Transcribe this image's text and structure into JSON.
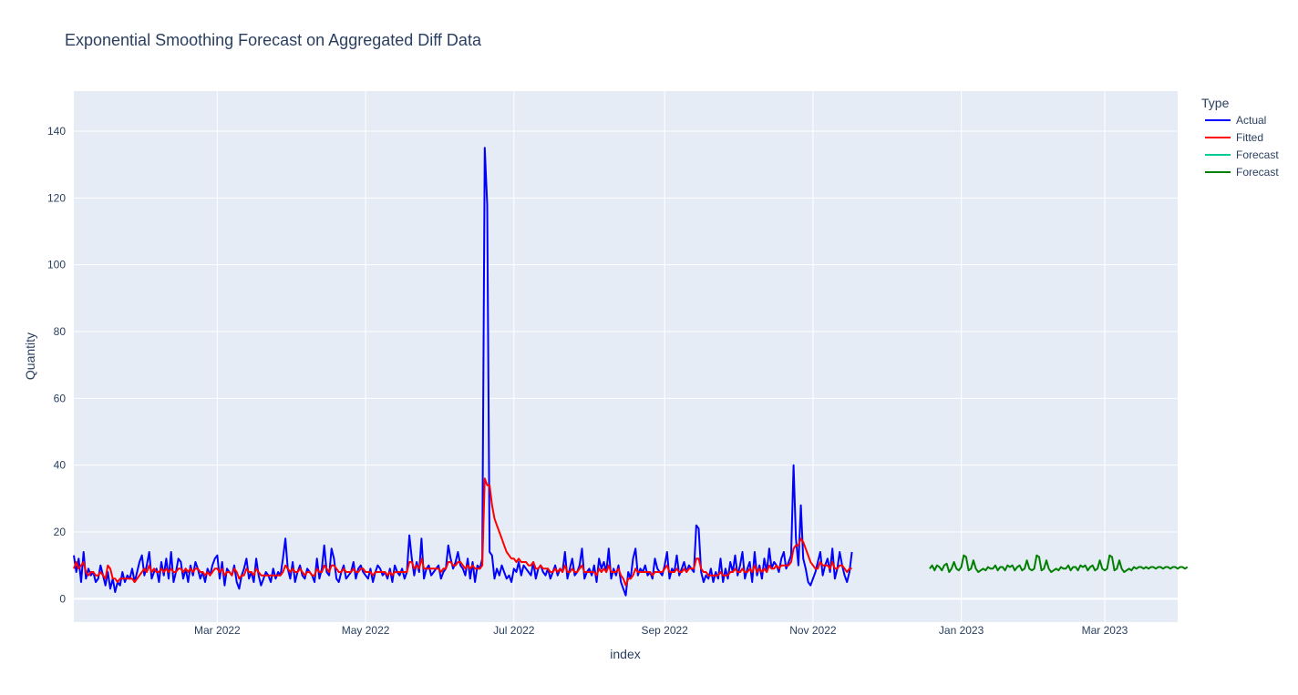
{
  "chart_data": {
    "type": "line",
    "title": "Exponential Smoothing Forecast on Aggregated Diff Data",
    "xlabel": "index",
    "ylabel": "Quantity",
    "legend_title": "Type",
    "legend_position": "top-right",
    "grid": true,
    "xlim": [
      "2022-01-01",
      "2023-03-31"
    ],
    "ylim": [
      -7,
      152
    ],
    "y_ticks": [
      0,
      20,
      40,
      60,
      80,
      100,
      120,
      140
    ],
    "x_ticks": [
      {
        "date": "2022-03-01",
        "label": "Mar 2022"
      },
      {
        "date": "2022-05-01",
        "label": "May 2022"
      },
      {
        "date": "2022-07-01",
        "label": "Jul 2022"
      },
      {
        "date": "2022-09-01",
        "label": "Sep 2022"
      },
      {
        "date": "2022-11-01",
        "label": "Nov 2022"
      },
      {
        "date": "2023-01-01",
        "label": "Jan 2023"
      },
      {
        "date": "2023-03-01",
        "label": "Mar 2023"
      }
    ],
    "series": [
      {
        "name": "Actual",
        "color": "#0000ff",
        "start": "2022-01-01",
        "values": [
          13,
          8,
          12,
          5,
          14,
          6,
          9,
          7,
          8,
          5,
          6,
          10,
          7,
          4,
          8,
          3,
          6,
          2,
          5,
          4,
          8,
          5,
          7,
          6,
          9,
          5,
          8,
          11,
          13,
          7,
          10,
          14,
          6,
          8,
          9,
          5,
          11,
          7,
          12,
          6,
          14,
          5,
          8,
          12,
          11,
          6,
          9,
          5,
          10,
          7,
          11,
          9,
          6,
          8,
          5,
          9,
          7,
          10,
          12,
          13,
          6,
          11,
          4,
          9,
          8,
          7,
          10,
          5,
          3,
          7,
          9,
          12,
          6,
          8,
          5,
          12,
          7,
          4,
          6,
          8,
          7,
          5,
          9,
          6,
          8,
          7,
          12,
          18,
          9,
          6,
          11,
          5,
          8,
          10,
          7,
          6,
          9,
          8,
          7,
          5,
          12,
          6,
          9,
          16,
          8,
          7,
          15,
          12,
          6,
          5,
          8,
          10,
          6,
          7,
          8,
          11,
          6,
          9,
          10,
          8,
          7,
          6,
          9,
          5,
          8,
          10,
          9,
          7,
          8,
          6,
          9,
          5,
          10,
          8,
          7,
          9,
          6,
          8,
          19,
          12,
          7,
          11,
          8,
          18,
          6,
          9,
          10,
          7,
          8,
          9,
          10,
          6,
          8,
          9,
          16,
          12,
          9,
          11,
          14,
          10,
          9,
          7,
          12,
          6,
          11,
          5,
          10,
          9,
          12,
          135,
          118,
          14,
          13,
          6,
          9,
          7,
          10,
          8,
          6,
          7,
          5,
          9,
          8,
          11,
          7,
          10,
          9,
          8,
          7,
          11,
          6,
          9,
          10,
          8,
          7,
          9,
          6,
          8,
          10,
          7,
          9,
          8,
          14,
          6,
          9,
          12,
          7,
          8,
          10,
          15,
          6,
          8,
          9,
          7,
          10,
          5,
          12,
          9,
          11,
          8,
          15,
          6,
          9,
          7,
          10,
          5,
          3,
          1,
          8,
          6,
          12,
          15,
          7,
          9,
          8,
          10,
          7,
          8,
          6,
          12,
          9,
          8,
          7,
          10,
          14,
          6,
          9,
          8,
          13,
          7,
          9,
          11,
          8,
          10,
          9,
          8,
          22,
          21,
          8,
          5,
          7,
          6,
          9,
          5,
          8,
          6,
          12,
          5,
          9,
          6,
          11,
          8,
          13,
          7,
          10,
          14,
          6,
          9,
          11,
          5,
          14,
          7,
          10,
          6,
          12,
          8,
          15,
          9,
          11,
          10,
          8,
          12,
          14,
          9,
          11,
          13,
          40,
          18,
          10,
          28,
          12,
          9,
          5,
          4,
          6,
          8,
          11,
          14,
          7,
          10,
          12,
          8,
          15,
          6,
          9,
          14,
          10,
          7,
          5,
          8,
          14
        ]
      },
      {
        "name": "Fitted",
        "color": "#ff0000",
        "start": "2022-01-01",
        "values": [
          9,
          11,
          9,
          10,
          11,
          8,
          7,
          8,
          8,
          7,
          7,
          8,
          7,
          6,
          10,
          9,
          6,
          6,
          5,
          6,
          6,
          6,
          6,
          6,
          6,
          5,
          6,
          7,
          8,
          9,
          8,
          10,
          8,
          9,
          8,
          8,
          9,
          8,
          9,
          8,
          9,
          8,
          8,
          9,
          9,
          8,
          9,
          8,
          9,
          8,
          9,
          9,
          8,
          8,
          7,
          8,
          7,
          8,
          9,
          9,
          8,
          9,
          7,
          8,
          8,
          7,
          9,
          8,
          6,
          7,
          7,
          9,
          8,
          8,
          7,
          9,
          8,
          7,
          7,
          7,
          7,
          7,
          7,
          7,
          7,
          7,
          8,
          10,
          9,
          8,
          9,
          8,
          8,
          9,
          8,
          7,
          8,
          8,
          7,
          7,
          9,
          8,
          8,
          10,
          9,
          8,
          10,
          10,
          9,
          8,
          8,
          9,
          8,
          8,
          8,
          9,
          8,
          8,
          9,
          9,
          8,
          8,
          8,
          7,
          8,
          8,
          8,
          8,
          8,
          7,
          8,
          7,
          8,
          8,
          8,
          8,
          8,
          8,
          11,
          11,
          9,
          10,
          9,
          12,
          9,
          9,
          9,
          9,
          9,
          9,
          9,
          8,
          9,
          9,
          11,
          11,
          10,
          10,
          11,
          11,
          10,
          9,
          10,
          9,
          10,
          9,
          9,
          9,
          10,
          36,
          34,
          34,
          28,
          24,
          22,
          20,
          18,
          16,
          14,
          13,
          12,
          12,
          11,
          12,
          11,
          11,
          11,
          10,
          10,
          11,
          9,
          9,
          10,
          9,
          9,
          9,
          8,
          8,
          9,
          8,
          9,
          8,
          10,
          8,
          8,
          9,
          8,
          8,
          9,
          10,
          8,
          8,
          8,
          8,
          8,
          7,
          9,
          8,
          9,
          8,
          10,
          8,
          8,
          8,
          9,
          7,
          6,
          4,
          6,
          6,
          7,
          9,
          8,
          8,
          8,
          8,
          8,
          8,
          7,
          8,
          8,
          8,
          8,
          9,
          10,
          8,
          8,
          8,
          9,
          8,
          8,
          9,
          8,
          9,
          9,
          9,
          12,
          12,
          9,
          8,
          8,
          7,
          7,
          7,
          7,
          7,
          8,
          7,
          7,
          7,
          8,
          8,
          9,
          8,
          8,
          9,
          8,
          8,
          9,
          8,
          10,
          8,
          9,
          8,
          9,
          8,
          10,
          9,
          9,
          10,
          9,
          10,
          10,
          10,
          10,
          11,
          15,
          16,
          16,
          18,
          17,
          15,
          13,
          11,
          10,
          9,
          9,
          11,
          10,
          10,
          10,
          9,
          11,
          9,
          9,
          10,
          10,
          9,
          8,
          9,
          9
        ]
      },
      {
        "name": "Forecast",
        "color": "#00cc96",
        "start": "2022-12-19",
        "values": []
      },
      {
        "name": "Forecast",
        "color": "#008000",
        "start": "2022-12-19",
        "values": [
          9,
          10,
          8.5,
          10,
          9.5,
          8.5,
          10,
          10.5,
          8,
          9,
          11,
          9,
          8.5,
          9.5,
          13,
          12.5,
          8.5,
          9,
          11.5,
          9,
          8,
          8.5,
          9,
          8.5,
          9.5,
          9,
          9,
          10,
          8.5,
          9.5,
          9.5,
          8.5,
          10,
          9.5,
          10,
          8.5,
          9.5,
          10,
          8.5,
          9,
          11.5,
          9,
          8.5,
          9,
          13,
          12.5,
          8.5,
          9,
          11.5,
          9,
          8,
          8.5,
          9,
          8.5,
          9.5,
          9,
          9,
          10,
          8.5,
          9.5,
          9.5,
          8.5,
          10,
          9.5,
          10,
          8.5,
          9.5,
          10,
          8.5,
          9,
          11.5,
          9,
          8.5,
          9,
          13,
          12.5,
          8.5,
          9,
          11.5,
          9,
          8,
          8.5,
          9,
          8.5,
          9.5,
          9,
          9.5,
          9.5,
          9,
          9.5,
          9,
          9.5,
          9.5,
          9,
          9.5,
          9.5,
          9,
          9.5,
          9.5,
          9,
          9.5,
          9.5,
          9,
          9.5,
          9.5,
          9,
          9.5
        ]
      }
    ]
  }
}
